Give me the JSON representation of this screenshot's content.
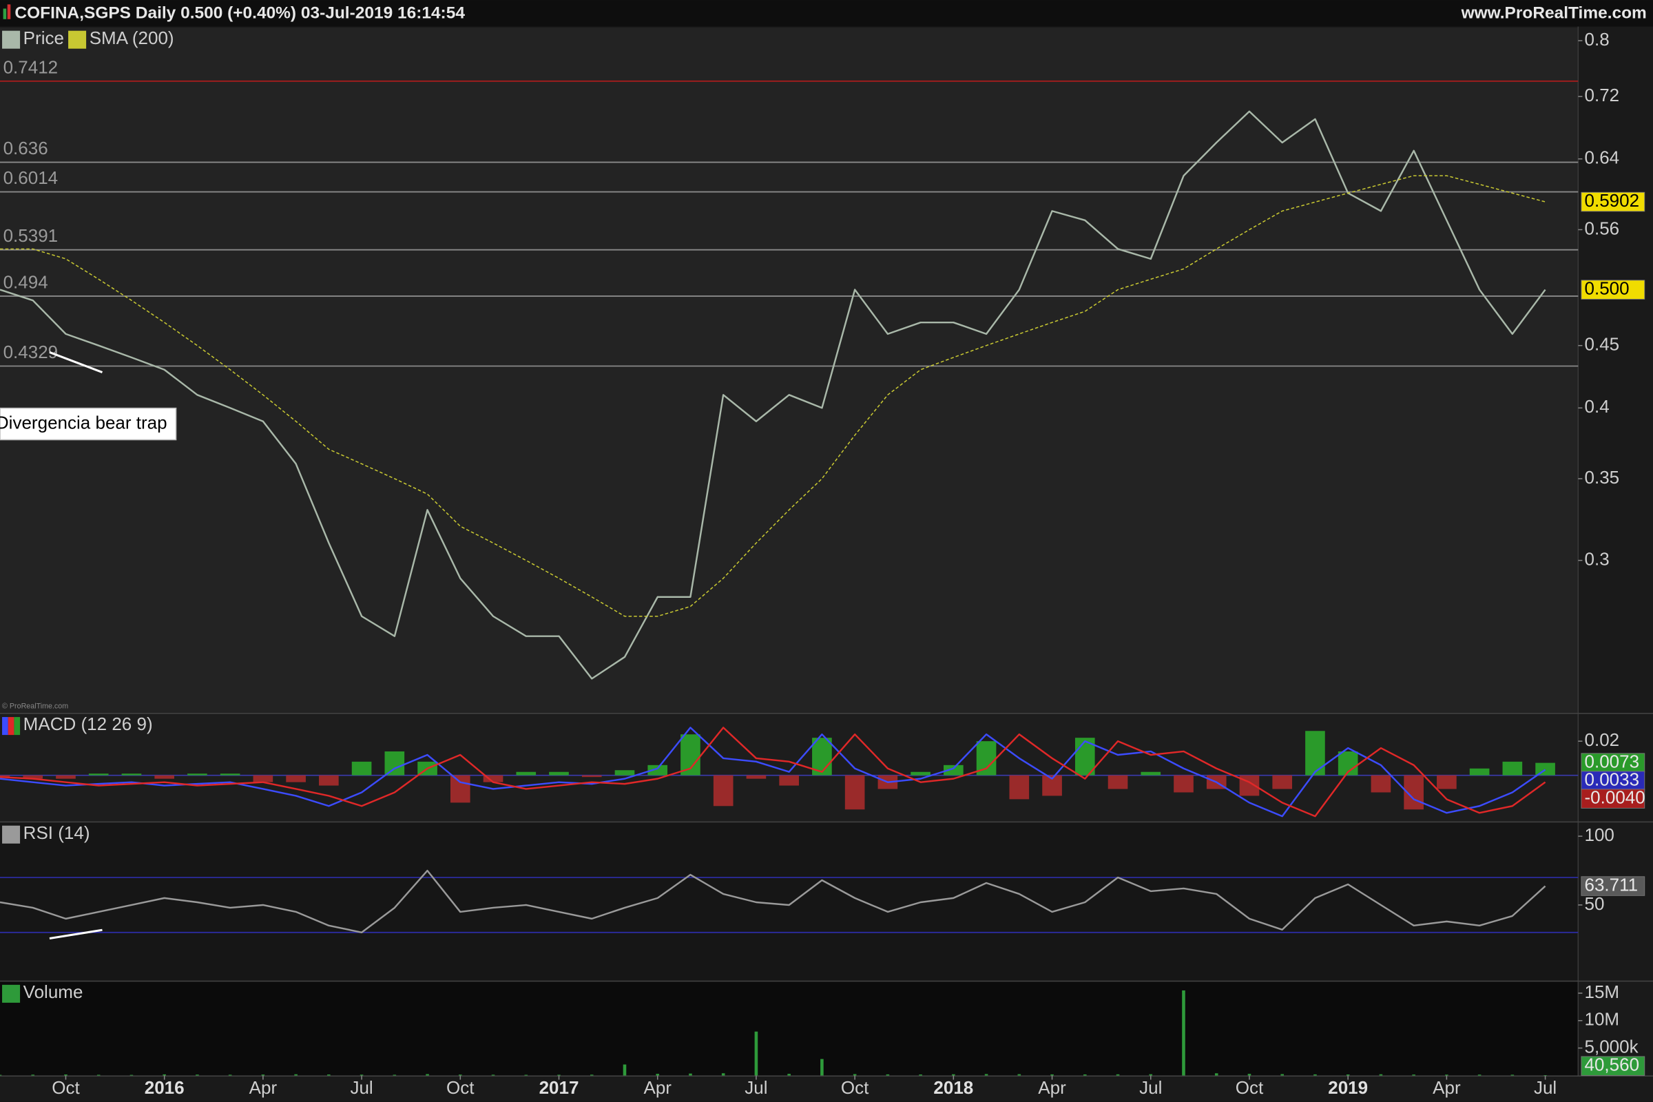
{
  "header": {
    "title": "COFINA,SGPS Daily 0.500 (+0.40%) 03-Jul-2019 16:14:54",
    "site": "www.ProRealTime.com",
    "copyright": "© ProRealTime.com"
  },
  "chart_data": [
    {
      "type": "line",
      "log_scale": true,
      "ylim": [
        0.225,
        0.82
      ],
      "yticks": [
        0.8,
        0.72,
        0.64,
        0.56,
        0.45,
        0.4,
        0.35,
        0.3
      ],
      "xlim": [
        "2015-08",
        "2019-08"
      ],
      "x": [
        "2015-08",
        "2015-09",
        "2015-10",
        "2015-11",
        "2015-12",
        "2016-01",
        "2016-02",
        "2016-03",
        "2016-04",
        "2016-05",
        "2016-06",
        "2016-07",
        "2016-08",
        "2016-09",
        "2016-10",
        "2016-11",
        "2016-12",
        "2017-01",
        "2017-02",
        "2017-03",
        "2017-04",
        "2017-05",
        "2017-06",
        "2017-07",
        "2017-08",
        "2017-09",
        "2017-10",
        "2017-11",
        "2017-12",
        "2018-01",
        "2018-02",
        "2018-03",
        "2018-04",
        "2018-05",
        "2018-06",
        "2018-07",
        "2018-08",
        "2018-09",
        "2018-10",
        "2018-11",
        "2018-12",
        "2019-01",
        "2019-02",
        "2019-03",
        "2019-04",
        "2019-05",
        "2019-06",
        "2019-07"
      ],
      "levels": [
        {
          "value": 0.7412,
          "color": "#a41c1c"
        },
        {
          "value": 0.636,
          "color": "#8a8a8a"
        },
        {
          "value": 0.6014,
          "color": "#8a8a8a"
        },
        {
          "value": 0.5391,
          "color": "#8a8a8a"
        },
        {
          "value": 0.494,
          "color": "#8a8a8a"
        },
        {
          "value": 0.4329,
          "color": "#8a8a8a"
        }
      ],
      "level_labels": true,
      "annotation": "Divergencia bear trap",
      "series": [
        {
          "name": "Price",
          "color": "#a9b8a9",
          "dashed": false,
          "last_label": "0.500",
          "label_color": "#f0dc00",
          "values": [
            0.5,
            0.49,
            0.46,
            0.45,
            0.44,
            0.43,
            0.41,
            0.4,
            0.39,
            0.36,
            0.31,
            0.27,
            0.26,
            0.33,
            0.29,
            0.27,
            0.26,
            0.26,
            0.24,
            0.25,
            0.28,
            0.28,
            0.41,
            0.39,
            0.41,
            0.4,
            0.5,
            0.46,
            0.47,
            0.47,
            0.46,
            0.5,
            0.58,
            0.57,
            0.54,
            0.53,
            0.62,
            0.66,
            0.7,
            0.66,
            0.69,
            0.6,
            0.58,
            0.65,
            0.57,
            0.5,
            0.46,
            0.5
          ]
        },
        {
          "name": "SMA (200)",
          "color": "#c8c832",
          "dashed": true,
          "last_label": "0.5902",
          "label_color": "#f0dc00",
          "values": [
            0.54,
            0.54,
            0.53,
            0.51,
            0.49,
            0.47,
            0.45,
            0.43,
            0.41,
            0.39,
            0.37,
            0.36,
            0.35,
            0.34,
            0.32,
            0.31,
            0.3,
            0.29,
            0.28,
            0.27,
            0.27,
            0.275,
            0.29,
            0.31,
            0.33,
            0.35,
            0.38,
            0.41,
            0.43,
            0.44,
            0.45,
            0.46,
            0.47,
            0.48,
            0.5,
            0.51,
            0.52,
            0.54,
            0.56,
            0.58,
            0.59,
            0.6,
            0.61,
            0.62,
            0.62,
            0.61,
            0.6,
            0.5902
          ]
        }
      ]
    },
    {
      "type": "macd",
      "title": "MACD (12 26 9)",
      "ylim": [
        -0.027,
        0.036
      ],
      "yticks": [
        0.02
      ],
      "zero_line_color": "#3a3ab0",
      "xlim": [
        "2015-08",
        "2019-08"
      ],
      "x": [
        "2015-08",
        "2015-09",
        "2015-10",
        "2015-11",
        "2015-12",
        "2016-01",
        "2016-02",
        "2016-03",
        "2016-04",
        "2016-05",
        "2016-06",
        "2016-07",
        "2016-08",
        "2016-09",
        "2016-10",
        "2016-11",
        "2016-12",
        "2017-01",
        "2017-02",
        "2017-03",
        "2017-04",
        "2017-05",
        "2017-06",
        "2017-07",
        "2017-08",
        "2017-09",
        "2017-10",
        "2017-11",
        "2017-12",
        "2018-01",
        "2018-02",
        "2018-03",
        "2018-04",
        "2018-05",
        "2018-06",
        "2018-07",
        "2018-08",
        "2018-09",
        "2018-10",
        "2018-11",
        "2018-12",
        "2019-01",
        "2019-02",
        "2019-03",
        "2019-04",
        "2019-05",
        "2019-06",
        "2019-07"
      ],
      "series": [
        {
          "color": "#3c4cff",
          "last_label": "0.0033",
          "label_color": "#2a2ab8",
          "values": [
            -0.002,
            -0.004,
            -0.006,
            -0.005,
            -0.004,
            -0.006,
            -0.005,
            -0.004,
            -0.008,
            -0.012,
            -0.018,
            -0.01,
            0.004,
            0.012,
            -0.004,
            -0.008,
            -0.006,
            -0.004,
            -0.005,
            -0.002,
            0.004,
            0.028,
            0.01,
            0.008,
            0.002,
            0.024,
            0.004,
            -0.004,
            -0.002,
            0.004,
            0.024,
            0.01,
            -0.002,
            0.02,
            0.012,
            0.014,
            0.004,
            -0.004,
            -0.016,
            -0.024,
            0.002,
            0.016,
            0.006,
            -0.014,
            -0.022,
            -0.018,
            -0.01,
            0.0033
          ]
        },
        {
          "color": "#e02828",
          "last_label": "-0.0040",
          "label_color": "#a81e1e",
          "values": [
            -0.001,
            -0.002,
            -0.004,
            -0.006,
            -0.005,
            -0.004,
            -0.006,
            -0.005,
            -0.004,
            -0.008,
            -0.012,
            -0.018,
            -0.01,
            0.004,
            0.012,
            -0.004,
            -0.008,
            -0.006,
            -0.004,
            -0.005,
            -0.002,
            0.004,
            0.028,
            0.01,
            0.008,
            0.002,
            0.024,
            0.004,
            -0.004,
            -0.002,
            0.004,
            0.024,
            0.01,
            -0.002,
            0.02,
            0.012,
            0.014,
            0.004,
            -0.004,
            -0.016,
            -0.024,
            0.002,
            0.016,
            0.006,
            -0.014,
            -0.022,
            -0.018,
            -0.004
          ]
        }
      ],
      "histogram": {
        "colors": [
          "#2a9a2a",
          "#9a2a2a"
        ],
        "last_label": "0.0073",
        "values": [
          -0.001,
          -0.002,
          -0.002,
          0.001,
          0.001,
          -0.002,
          0.001,
          0.001,
          -0.004,
          -0.004,
          -0.006,
          0.008,
          0.014,
          0.008,
          -0.016,
          -0.004,
          0.002,
          0.002,
          -0.001,
          0.003,
          0.006,
          0.024,
          -0.018,
          -0.002,
          -0.006,
          0.022,
          -0.02,
          -0.008,
          0.002,
          0.006,
          0.02,
          -0.014,
          -0.012,
          0.022,
          -0.008,
          0.002,
          -0.01,
          -0.008,
          -0.012,
          -0.008,
          0.026,
          0.014,
          -0.01,
          -0.02,
          -0.008,
          0.004,
          0.008,
          0.0073
        ]
      }
    },
    {
      "type": "line",
      "log_scale": false,
      "ylim": [
        -5,
        110
      ],
      "yticks": [
        100,
        50
      ],
      "xlim": [
        "2015-08",
        "2019-08"
      ],
      "x": [
        "2015-08",
        "2015-09",
        "2015-10",
        "2015-11",
        "2015-12",
        "2016-01",
        "2016-02",
        "2016-03",
        "2016-04",
        "2016-05",
        "2016-06",
        "2016-07",
        "2016-08",
        "2016-09",
        "2016-10",
        "2016-11",
        "2016-12",
        "2017-01",
        "2017-02",
        "2017-03",
        "2017-04",
        "2017-05",
        "2017-06",
        "2017-07",
        "2017-08",
        "2017-09",
        "2017-10",
        "2017-11",
        "2017-12",
        "2018-01",
        "2018-02",
        "2018-03",
        "2018-04",
        "2018-05",
        "2018-06",
        "2018-07",
        "2018-08",
        "2018-09",
        "2018-10",
        "2018-11",
        "2018-12",
        "2019-01",
        "2019-02",
        "2019-03",
        "2019-04",
        "2019-05",
        "2019-06",
        "2019-07"
      ],
      "levels": [
        {
          "value": 70,
          "color": "#2c2ca0"
        },
        {
          "value": 30,
          "color": "#2c2ca0"
        }
      ],
      "level_labels": false,
      "series": [
        {
          "name": "RSI (14)",
          "color": "#9a9a9a",
          "dashed": false,
          "last_label": "63.711",
          "label_color": "#5a5a5a",
          "values": [
            52,
            48,
            40,
            45,
            50,
            55,
            52,
            48,
            50,
            45,
            35,
            30,
            48,
            75,
            45,
            48,
            50,
            45,
            40,
            48,
            55,
            72,
            58,
            52,
            50,
            68,
            55,
            45,
            52,
            55,
            66,
            58,
            45,
            52,
            70,
            60,
            62,
            58,
            40,
            32,
            55,
            65,
            50,
            35,
            38,
            35,
            42,
            63.711
          ]
        }
      ]
    },
    {
      "type": "bar",
      "ylim": [
        0,
        17100000
      ],
      "yticks": [
        {
          "value": 15000000,
          "label": "15M"
        },
        {
          "value": 10000000,
          "label": "10M"
        },
        {
          "value": 5000000,
          "label": "5,000k"
        }
      ],
      "xlim": [
        "2015-08",
        "2019-08"
      ],
      "xticks": [
        {
          "value": "2015-10",
          "label": "Oct"
        },
        {
          "value": "2016-01",
          "label": "2016"
        },
        {
          "value": "2016-04",
          "label": "Apr"
        },
        {
          "value": "2016-07",
          "label": "Jul"
        },
        {
          "value": "2016-10",
          "label": "Oct"
        },
        {
          "value": "2017-01",
          "label": "2017"
        },
        {
          "value": "2017-04",
          "label": "Apr"
        },
        {
          "value": "2017-07",
          "label": "Jul"
        },
        {
          "value": "2017-10",
          "label": "Oct"
        },
        {
          "value": "2018-01",
          "label": "2018"
        },
        {
          "value": "2018-04",
          "label": "Apr"
        },
        {
          "value": "2018-07",
          "label": "Jul"
        },
        {
          "value": "2018-10",
          "label": "Oct"
        },
        {
          "value": "2019-01",
          "label": "2019"
        },
        {
          "value": "2019-04",
          "label": "Apr"
        },
        {
          "value": "2019-07",
          "label": "Jul"
        }
      ],
      "x": [
        "2015-08",
        "2015-09",
        "2015-10",
        "2015-11",
        "2015-12",
        "2016-01",
        "2016-02",
        "2016-03",
        "2016-04",
        "2016-05",
        "2016-06",
        "2016-07",
        "2016-08",
        "2016-09",
        "2016-10",
        "2016-11",
        "2016-12",
        "2017-01",
        "2017-02",
        "2017-03",
        "2017-04",
        "2017-05",
        "2017-06",
        "2017-07",
        "2017-08",
        "2017-09",
        "2017-10",
        "2017-11",
        "2017-12",
        "2018-01",
        "2018-02",
        "2018-03",
        "2018-04",
        "2018-05",
        "2018-06",
        "2018-07",
        "2018-08",
        "2018-09",
        "2018-10",
        "2018-11",
        "2018-12",
        "2019-01",
        "2019-02",
        "2019-03",
        "2019-04",
        "2019-05",
        "2019-06",
        "2019-07"
      ],
      "series": [
        {
          "name": "Volume",
          "color": "#2e9a3a",
          "last_label": "40,560",
          "label_color": "#2e9a3a",
          "values": [
            120000,
            150000,
            180000,
            130000,
            110000,
            200000,
            160000,
            140000,
            170000,
            220000,
            180000,
            150000,
            130000,
            250000,
            160000,
            140000,
            120000,
            130000,
            150000,
            2000000,
            300000,
            350000,
            400000,
            8000000,
            300000,
            3000000,
            250000,
            200000,
            180000,
            220000,
            260000,
            240000,
            200000,
            190000,
            210000,
            230000,
            15500000,
            400000,
            300000,
            250000,
            200000,
            180000,
            220000,
            170000,
            150000,
            160000,
            140000,
            40560
          ]
        }
      ]
    }
  ]
}
